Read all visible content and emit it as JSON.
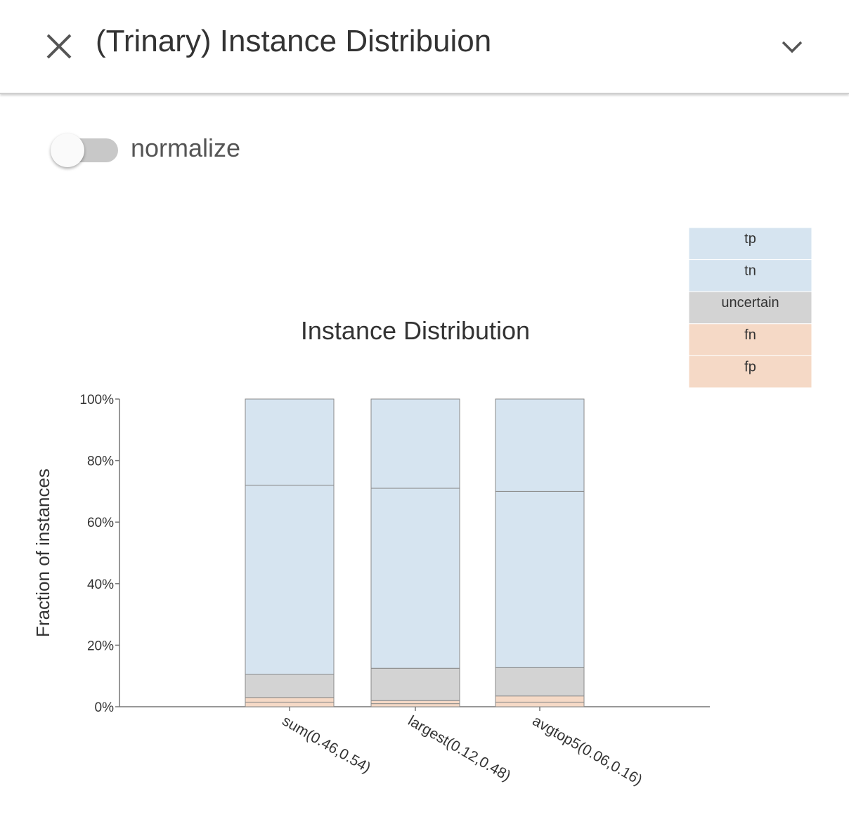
{
  "panel": {
    "title": "(Trinary) Instance Distribuion",
    "close_icon": "close-icon",
    "collapse_icon": "chevron-down-icon"
  },
  "normalize": {
    "label": "normalize",
    "checked": false
  },
  "chart_data": {
    "type": "bar",
    "title": "Instance Distribution",
    "xlabel": "",
    "ylabel": "Fraction of instances",
    "ylim": [
      0,
      100
    ],
    "yticks": [
      "0%",
      "20%",
      "40%",
      "60%",
      "80%",
      "100%"
    ],
    "categories": [
      "sum(0.46,0.54)",
      "largest(0.12,0.48)",
      "avgtop5(0.06,0.16)"
    ],
    "series": [
      {
        "name": "fp",
        "color": "#f5d9c6",
        "values": [
          1.5,
          1.0,
          1.5
        ]
      },
      {
        "name": "fn",
        "color": "#f5d9c6",
        "values": [
          1.5,
          1.0,
          2.0
        ]
      },
      {
        "name": "uncertain",
        "color": "#d3d3d3",
        "values": [
          7.5,
          10.5,
          9.2
        ]
      },
      {
        "name": "tn",
        "color": "#d6e4f0",
        "values": [
          61.5,
          58.5,
          57.3
        ]
      },
      {
        "name": "tp",
        "color": "#d6e4f0",
        "values": [
          28.0,
          29.0,
          30.0
        ]
      }
    ],
    "legend_position": "top-right",
    "grid": false
  }
}
